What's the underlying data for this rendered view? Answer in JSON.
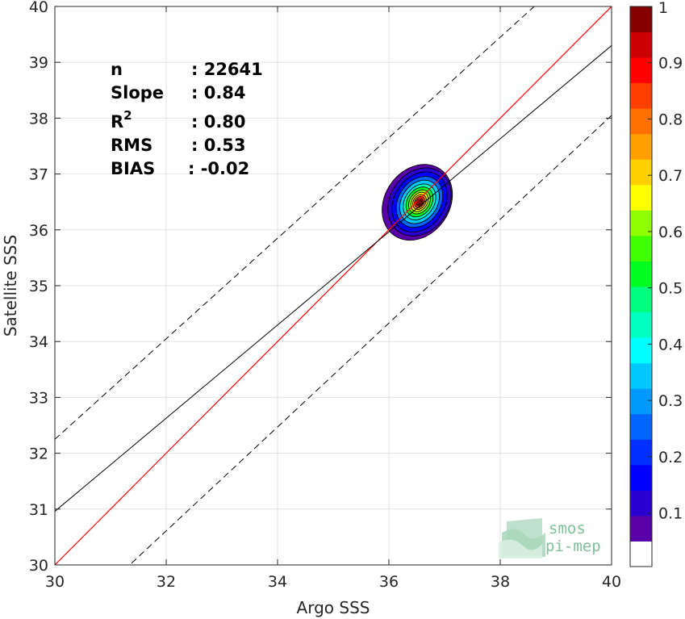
{
  "chart_data": {
    "type": "heatmap",
    "xlabel": "Argo SSS",
    "ylabel": "Satellite SSS",
    "xlim": [
      30,
      40
    ],
    "ylim": [
      30,
      40
    ],
    "xticks": [
      "30",
      "32",
      "34",
      "36",
      "38",
      "40"
    ],
    "yticks": [
      "30",
      "31",
      "32",
      "33",
      "34",
      "35",
      "36",
      "37",
      "38",
      "39",
      "40"
    ],
    "grid": true,
    "stats": [
      {
        "label": "n",
        "value": ": 22641"
      },
      {
        "label": "Slope",
        "value": ": 0.84"
      },
      {
        "label": "R",
        "sup": "2",
        "value": ": 0.80"
      },
      {
        "label": "RMS",
        "value": ": 0.53"
      },
      {
        "label": "BIAS",
        "value": ": -0.02"
      }
    ],
    "lines": {
      "identity": {
        "color": "#ff0000",
        "slope": 1,
        "intercept": 0
      },
      "regression": {
        "color": "#000000",
        "slope": 0.84,
        "intercept_at_30": 30.96,
        "intercept_at_40": 39.3
      },
      "envelope_upper": {
        "color": "#000000",
        "style": "dashed",
        "y_at_30": 32.25,
        "y_at_40": 41.25
      },
      "envelope_lower": {
        "color": "#000000",
        "style": "dashed",
        "y_at_30": 28.75,
        "y_at_40": 38.05
      }
    },
    "density": {
      "center": [
        36.55,
        36.5
      ],
      "peak": 1.0,
      "levels": [
        0.05,
        0.15,
        0.25,
        0.35,
        0.45,
        0.55,
        0.65,
        0.75,
        0.85,
        0.95
      ]
    },
    "colorbar": {
      "ticks": [
        "0.1",
        "0.2",
        "0.3",
        "0.4",
        "0.5",
        "0.6",
        "0.7",
        "0.8",
        "0.9",
        "1"
      ],
      "tick_values": [
        0.1,
        0.2,
        0.3,
        0.4,
        0.5,
        0.6,
        0.7,
        0.8,
        0.9,
        1.0
      ],
      "colors": [
        "#ffffff",
        "#5a00a8",
        "#2a00d0",
        "#0000ff",
        "#0030ff",
        "#0066ff",
        "#0099ff",
        "#00c8ff",
        "#00ffff",
        "#00ffc0",
        "#00ff80",
        "#00ff20",
        "#40ff00",
        "#90ff00",
        "#ffff00",
        "#ffd000",
        "#ffa000",
        "#ff7000",
        "#ff4000",
        "#ff0000",
        "#cc0000",
        "#880000"
      ]
    }
  },
  "logo": {
    "line1": "smos",
    "line2": "pi-mep"
  }
}
